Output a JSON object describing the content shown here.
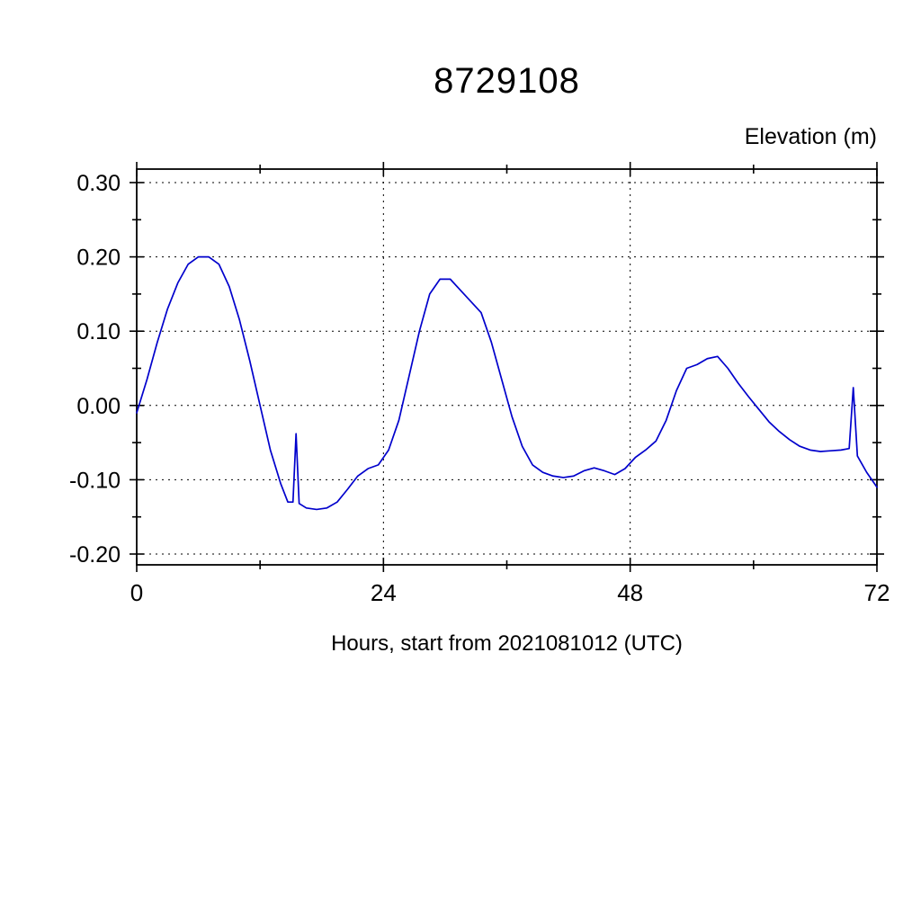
{
  "chart_data": {
    "type": "line",
    "title": "8729108",
    "ylabel": "Elevation (m)",
    "xlabel": "Hours, start from 2021081012 (UTC)",
    "xlim": [
      0,
      72
    ],
    "ylim": [
      -0.2,
      0.3
    ],
    "xticks_major": [
      0,
      24,
      48,
      72
    ],
    "xtick_labels": [
      "0",
      "24",
      "48",
      "72"
    ],
    "xticks_minor": [
      12,
      36,
      60
    ],
    "yticks_major": [
      0.3,
      0.2,
      0.1,
      0.0,
      -0.1,
      -0.2
    ],
    "ytick_labels": [
      "0.30",
      "0.20",
      "0.10",
      "0.00",
      "-0.10",
      "-0.20"
    ],
    "yticks_minor": [
      0.25,
      0.15,
      0.05,
      -0.05,
      -0.15
    ],
    "grid": true,
    "legend": "none",
    "line_color": "#0000cc",
    "axis_color": "#000000",
    "series": [
      {
        "name": "elevation",
        "points": [
          [
            0,
            -0.01
          ],
          [
            1,
            0.035
          ],
          [
            2,
            0.085
          ],
          [
            3,
            0.13
          ],
          [
            4,
            0.165
          ],
          [
            5,
            0.19
          ],
          [
            6,
            0.2
          ],
          [
            7,
            0.2
          ],
          [
            8,
            0.19
          ],
          [
            9,
            0.16
          ],
          [
            10,
            0.115
          ],
          [
            11,
            0.06
          ],
          [
            12,
            0.0
          ],
          [
            13,
            -0.06
          ],
          [
            14,
            -0.105
          ],
          [
            14.7,
            -0.13
          ],
          [
            15.2,
            -0.13
          ],
          [
            15.5,
            -0.038
          ],
          [
            15.8,
            -0.132
          ],
          [
            16.5,
            -0.138
          ],
          [
            17.5,
            -0.14
          ],
          [
            18.5,
            -0.138
          ],
          [
            19.5,
            -0.13
          ],
          [
            20.5,
            -0.113
          ],
          [
            21.5,
            -0.095
          ],
          [
            22.5,
            -0.085
          ],
          [
            23.5,
            -0.08
          ],
          [
            24.5,
            -0.06
          ],
          [
            25.5,
            -0.02
          ],
          [
            26.5,
            0.04
          ],
          [
            27.5,
            0.1
          ],
          [
            28.5,
            0.15
          ],
          [
            29.5,
            0.17
          ],
          [
            30.5,
            0.17
          ],
          [
            31.5,
            0.155
          ],
          [
            32.5,
            0.14
          ],
          [
            33.5,
            0.125
          ],
          [
            34.5,
            0.085
          ],
          [
            35.5,
            0.035
          ],
          [
            36.5,
            -0.015
          ],
          [
            37.5,
            -0.055
          ],
          [
            38.5,
            -0.08
          ],
          [
            39.5,
            -0.09
          ],
          [
            40.5,
            -0.095
          ],
          [
            41.5,
            -0.097
          ],
          [
            42.5,
            -0.095
          ],
          [
            43.5,
            -0.088
          ],
          [
            44.5,
            -0.084
          ],
          [
            45.5,
            -0.088
          ],
          [
            46.5,
            -0.093
          ],
          [
            47.5,
            -0.085
          ],
          [
            48.5,
            -0.07
          ],
          [
            49.5,
            -0.06
          ],
          [
            50.5,
            -0.048
          ],
          [
            51.5,
            -0.02
          ],
          [
            52.5,
            0.02
          ],
          [
            53.5,
            0.05
          ],
          [
            54.5,
            0.055
          ],
          [
            55.5,
            0.063
          ],
          [
            56.5,
            0.066
          ],
          [
            57.5,
            0.05
          ],
          [
            58.5,
            0.03
          ],
          [
            59.5,
            0.012
          ],
          [
            60.5,
            -0.005
          ],
          [
            61.5,
            -0.022
          ],
          [
            62.5,
            -0.035
          ],
          [
            63.5,
            -0.046
          ],
          [
            64.5,
            -0.055
          ],
          [
            65.5,
            -0.06
          ],
          [
            66.5,
            -0.062
          ],
          [
            67.5,
            -0.061
          ],
          [
            68.5,
            -0.06
          ],
          [
            69.3,
            -0.058
          ],
          [
            69.7,
            0.024
          ],
          [
            70.1,
            -0.068
          ],
          [
            71,
            -0.09
          ],
          [
            72,
            -0.11
          ]
        ]
      }
    ]
  }
}
